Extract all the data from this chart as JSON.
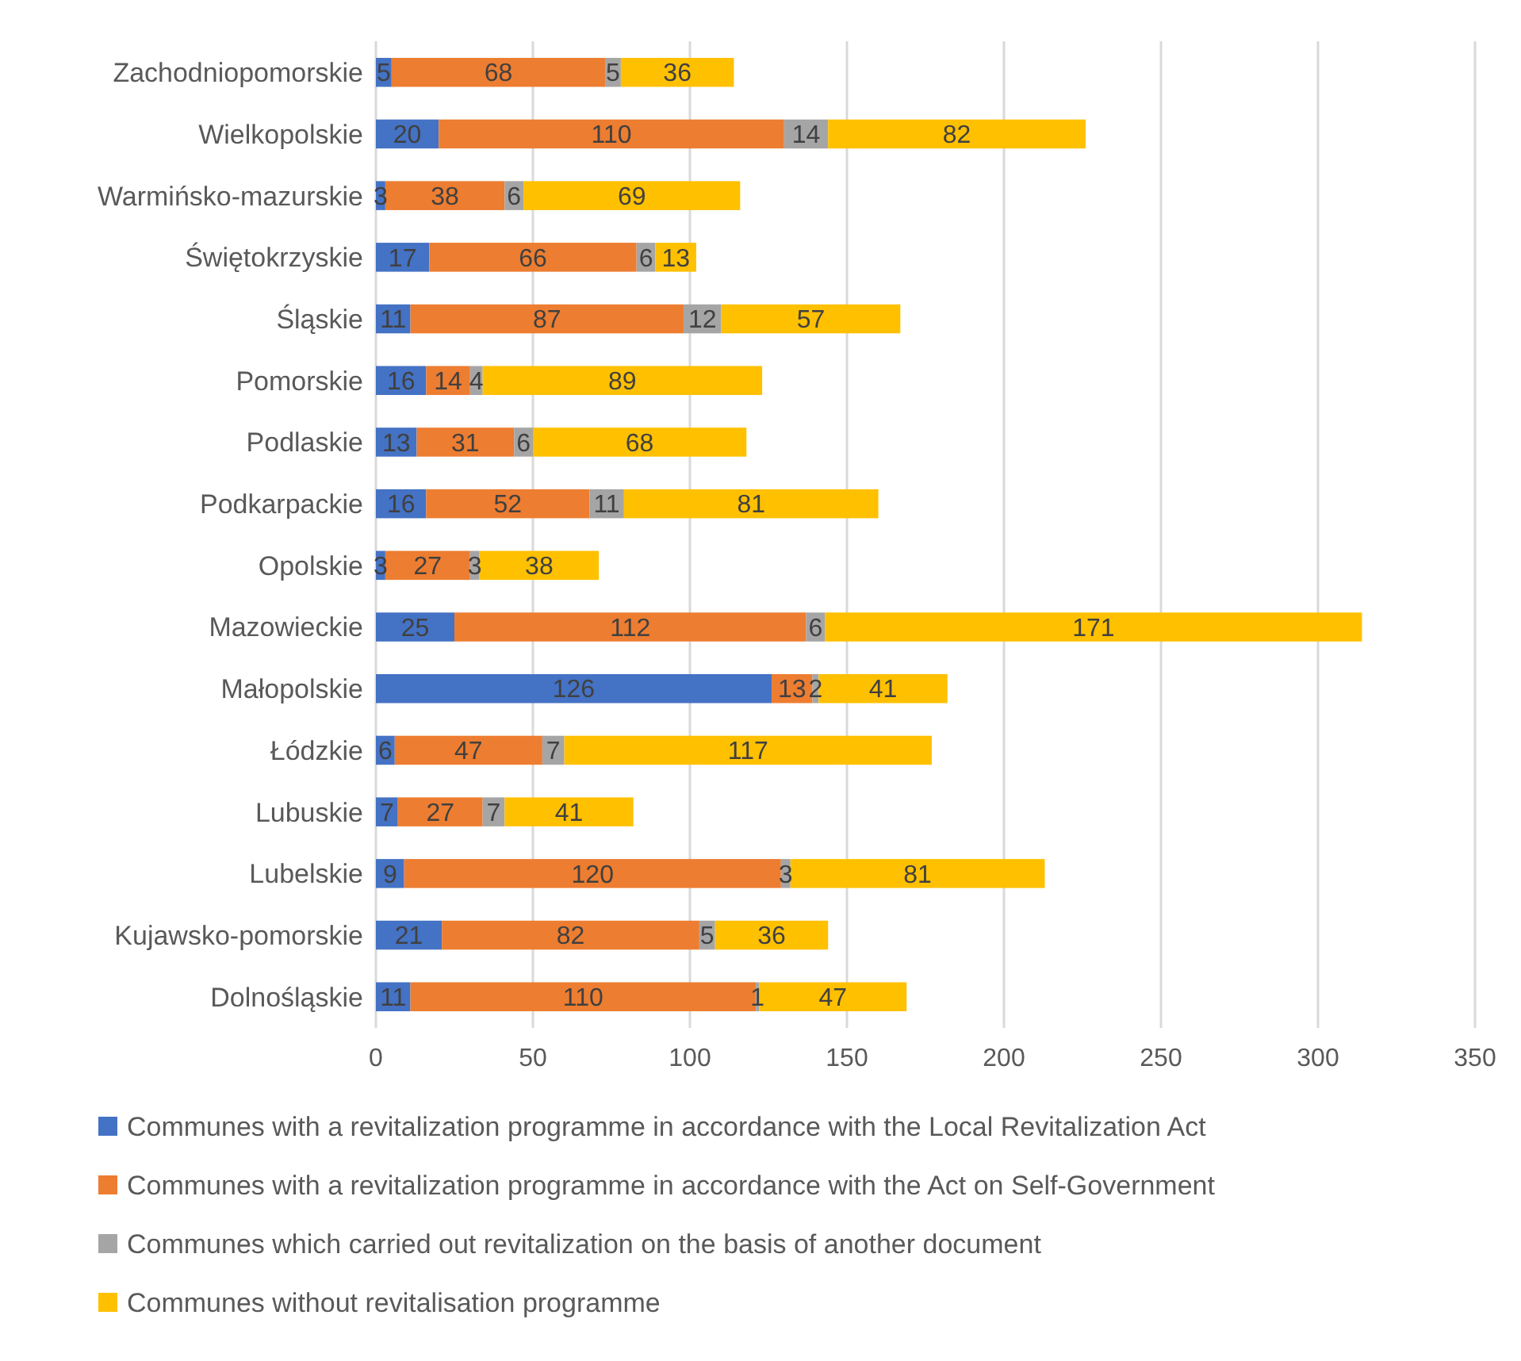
{
  "chart_data": {
    "type": "bar",
    "orientation": "horizontal",
    "stacked": true,
    "data_labels": true,
    "grid": "x",
    "legend": "bottom",
    "categories": [
      "Zachodniopomorskie",
      "Wielkopolskie",
      "Warmińsko-mazurskie",
      "Świętokrzyskie",
      "Śląskie",
      "Pomorskie",
      "Podlaskie",
      "Podkarpackie",
      "Opolskie",
      "Mazowieckie",
      "Małopolskie",
      "Łódzkie",
      "Lubuskie",
      "Lubelskie",
      "Kujawsko-pomorskie",
      "Dolnośląskie"
    ],
    "xlim": [
      0,
      350
    ],
    "xticks": [
      0,
      50,
      100,
      150,
      200,
      250,
      300,
      350
    ],
    "series": [
      {
        "name": "Communes with a revitalization programme in accordance with the Local Revitalization Act",
        "color": "#4472c4",
        "values": [
          5,
          20,
          3,
          17,
          11,
          16,
          13,
          16,
          3,
          25,
          126,
          6,
          7,
          9,
          21,
          11
        ]
      },
      {
        "name": "Communes with a revitalization programme in accordance with the Act on Self-Government",
        "color": "#ed7d31",
        "values": [
          68,
          110,
          38,
          66,
          87,
          14,
          31,
          52,
          27,
          112,
          13,
          47,
          27,
          120,
          82,
          110
        ]
      },
      {
        "name": "Communes which carried out revitalization on the basis of another document",
        "color": "#a5a5a5",
        "values": [
          5,
          14,
          6,
          6,
          12,
          4,
          6,
          11,
          3,
          6,
          2,
          7,
          7,
          3,
          5,
          1
        ]
      },
      {
        "name": "Communes without revitalisation programme",
        "color": "#ffc000",
        "values": [
          36,
          82,
          69,
          13,
          57,
          89,
          68,
          81,
          38,
          171,
          41,
          117,
          41,
          81,
          36,
          47
        ]
      }
    ]
  }
}
